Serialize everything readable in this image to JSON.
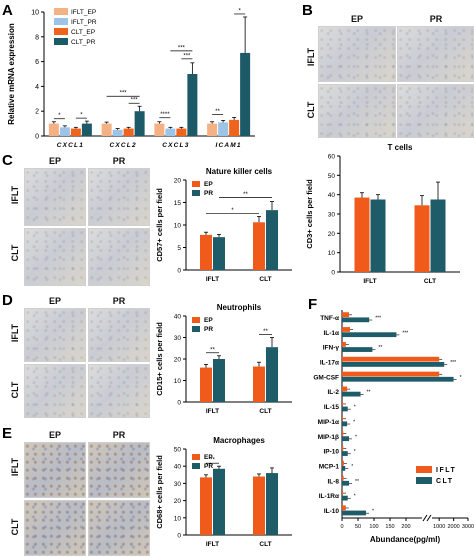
{
  "colors": {
    "iflt_ep": "#f4b183",
    "iflt_pr": "#9dc3e6",
    "clt_ep": "#f0631c",
    "clt_pr": "#1d5a68",
    "orange": "#f05a1a",
    "teal": "#1f5c69"
  },
  "panels": {
    "A": {
      "letter": "A"
    },
    "B": {
      "letter": "B",
      "cols": [
        "EP",
        "PR"
      ],
      "rows": [
        "IFLT",
        "CLT"
      ]
    },
    "C": {
      "letter": "C",
      "cols": [
        "EP",
        "PR"
      ],
      "rows": [
        "IFLT",
        "CLT"
      ]
    },
    "D": {
      "letter": "D",
      "cols": [
        "EP",
        "PR"
      ],
      "rows": [
        "IFLT",
        "CLT"
      ]
    },
    "E": {
      "letter": "E",
      "cols": [
        "EP",
        "PR"
      ],
      "rows": [
        "IFLT",
        "CLT"
      ]
    },
    "F": {
      "letter": "F"
    }
  },
  "chart_data": [
    {
      "id": "A",
      "type": "bar",
      "ylabel": "Relative mRNA expression",
      "categories": [
        "CXCL1",
        "CXCL2",
        "CXCL3",
        "ICAM1"
      ],
      "ylim": [
        0,
        10
      ],
      "yticks": [
        0,
        2,
        4,
        6,
        8,
        10
      ],
      "series": [
        {
          "name": "IFLT_EP",
          "values": [
            1.0,
            1.0,
            1.0,
            1.0
          ],
          "err": [
            0.15,
            0.12,
            0.15,
            0.15
          ]
        },
        {
          "name": "IFLT_PR",
          "values": [
            0.7,
            0.5,
            0.6,
            1.1
          ],
          "err": [
            0.12,
            0.1,
            0.1,
            0.15
          ]
        },
        {
          "name": "CLT_EP",
          "values": [
            0.6,
            0.6,
            0.6,
            1.3
          ],
          "err": [
            0.1,
            0.1,
            0.1,
            0.2
          ]
        },
        {
          "name": "CLT_PR",
          "values": [
            1.0,
            2.0,
            5.0,
            6.7
          ],
          "err": [
            0.2,
            0.4,
            0.9,
            2.9
          ]
        }
      ],
      "sig": [
        "*",
        "*",
        "***",
        "***",
        "****",
        "***",
        "***",
        "**",
        "*"
      ]
    },
    {
      "id": "B",
      "type": "bar",
      "title": "T cells",
      "ylabel": "CD3+ cells per field",
      "categories": [
        "IFLT",
        "CLT"
      ],
      "ylim": [
        0,
        60
      ],
      "yticks": [
        0,
        10,
        20,
        30,
        40,
        50,
        60
      ],
      "series": [
        {
          "name": "EP",
          "values": [
            38.5,
            34.5
          ],
          "err": [
            2.5,
            5
          ]
        },
        {
          "name": "PR",
          "values": [
            37.5,
            37.5
          ],
          "err": [
            2.5,
            9
          ]
        }
      ]
    },
    {
      "id": "C",
      "type": "bar",
      "title": "Nature killer cells",
      "ylabel": "CD57+ cells per field",
      "categories": [
        "IFLT",
        "CLT"
      ],
      "ylim": [
        0,
        20
      ],
      "yticks": [
        0,
        5,
        10,
        15,
        20
      ],
      "legend": [
        "EP",
        "PR"
      ],
      "series": [
        {
          "name": "EP",
          "values": [
            7.8,
            10.6
          ],
          "err": [
            0.6,
            1.3
          ]
        },
        {
          "name": "PR",
          "values": [
            7.3,
            13.3
          ],
          "err": [
            0.6,
            1.9
          ]
        }
      ],
      "sig": [
        "*",
        "**"
      ]
    },
    {
      "id": "D",
      "type": "bar",
      "title": "Neutrophils",
      "ylabel": "CD15+ cells per field",
      "categories": [
        "IFLT",
        "CLT"
      ],
      "ylim": [
        0,
        40
      ],
      "yticks": [
        0,
        10,
        20,
        30,
        40
      ],
      "legend": [
        "EP",
        "PR"
      ],
      "series": [
        {
          "name": "EP",
          "values": [
            16.0,
            16.5
          ],
          "err": [
            1.5,
            2.0
          ]
        },
        {
          "name": "PR",
          "values": [
            20.0,
            25.5
          ],
          "err": [
            1.5,
            4.5
          ]
        }
      ],
      "sig": [
        "**",
        "**"
      ]
    },
    {
      "id": "E",
      "type": "bar",
      "title": "Macrophages",
      "ylabel": "CD68+ cells per field",
      "categories": [
        "IFLT",
        "CLT"
      ],
      "ylim": [
        0,
        50
      ],
      "yticks": [
        0,
        10,
        20,
        30,
        40,
        50
      ],
      "legend": [
        "EP",
        "PR"
      ],
      "series": [
        {
          "name": "EP",
          "values": [
            33.5,
            34.0
          ],
          "err": [
            1.5,
            1.5
          ]
        },
        {
          "name": "PR",
          "values": [
            38.5,
            36.0
          ],
          "err": [
            1.5,
            3.0
          ]
        }
      ],
      "sig": [
        "**"
      ]
    },
    {
      "id": "F",
      "type": "bar",
      "orientation": "horizontal",
      "xlabel": "Abundance(pg/ml)",
      "categories": [
        "TNF-α",
        "IL-1α",
        "IFN-γ",
        "IL-17α",
        "GM-CSF",
        "IL-2",
        "IL-15",
        "MIP-1α",
        "MIP-1β",
        "IP-10",
        "MCP-1",
        "IL-8",
        "IL-1Rα",
        "IL-10"
      ],
      "xticks": [
        0,
        50,
        100,
        150,
        200,
        1000,
        2000,
        3000
      ],
      "broken_axis": [
        250,
        500
      ],
      "legend": [
        "IFLT",
        "CLT"
      ],
      "series": [
        {
          "name": "IFLT",
          "values": [
            22,
            25,
            12,
            1000,
            1000,
            16,
            3,
            3,
            4,
            4,
            6,
            5,
            3,
            12
          ]
        },
        {
          "name": "CLT",
          "values": [
            85,
            170,
            95,
            1350,
            2000,
            58,
            18,
            16,
            22,
            18,
            10,
            22,
            18,
            75
          ]
        }
      ],
      "sig": [
        "***",
        "***",
        "**",
        "***",
        "*",
        "**",
        "*",
        "*",
        "*",
        "*",
        "*",
        "**",
        "*",
        "*"
      ]
    }
  ]
}
